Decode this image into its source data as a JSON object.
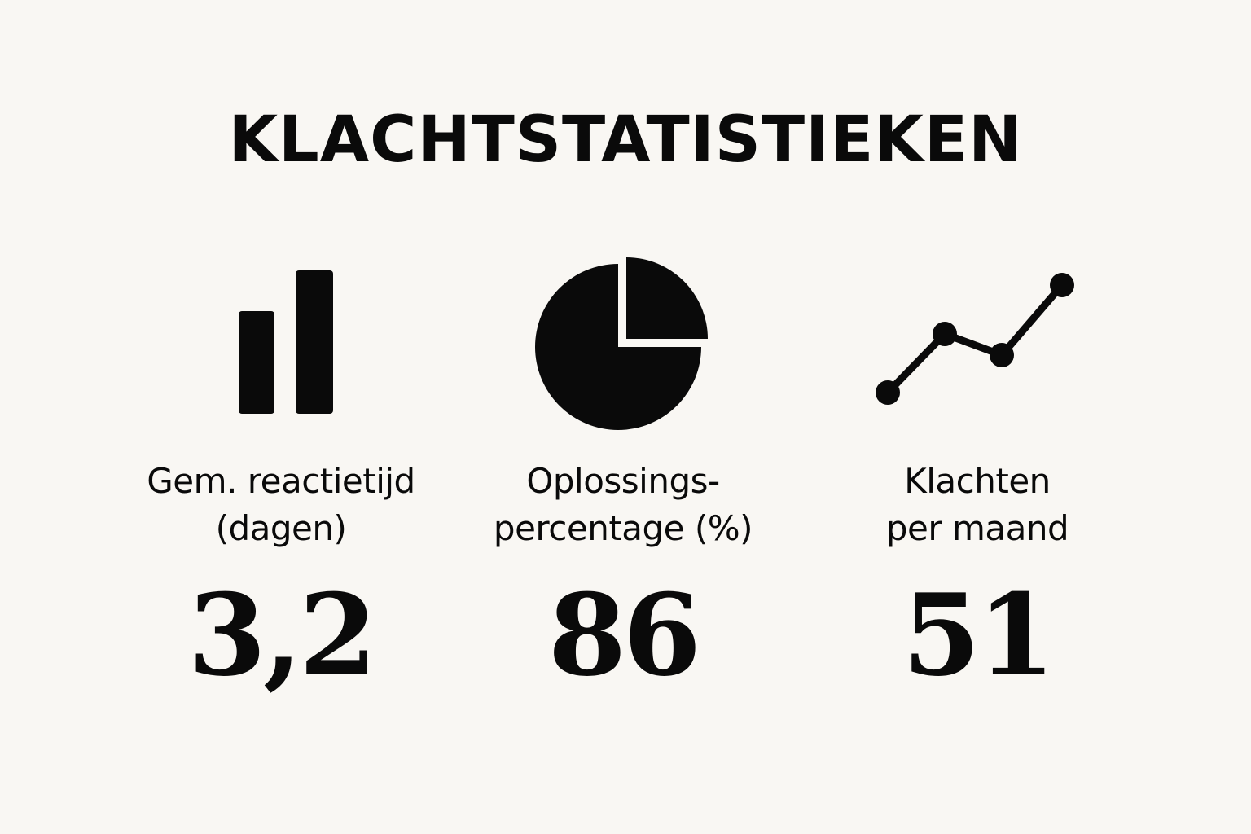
{
  "title": "KLACHTSTATISTIEKEN",
  "colors": {
    "background": "#f9f7f3",
    "ink": "#0a0a0a"
  },
  "stats": [
    {
      "icon": "bar-chart-icon",
      "label_lines": [
        "Gem. reactietijd",
        "(dagen)"
      ],
      "value": "3,2"
    },
    {
      "icon": "pie-chart-icon",
      "label_lines": [
        "Oplossings-",
        "percentage (%)"
      ],
      "value": "86"
    },
    {
      "icon": "line-chart-icon",
      "label_lines": [
        "Klachten",
        "per maand"
      ],
      "value": "51"
    }
  ]
}
